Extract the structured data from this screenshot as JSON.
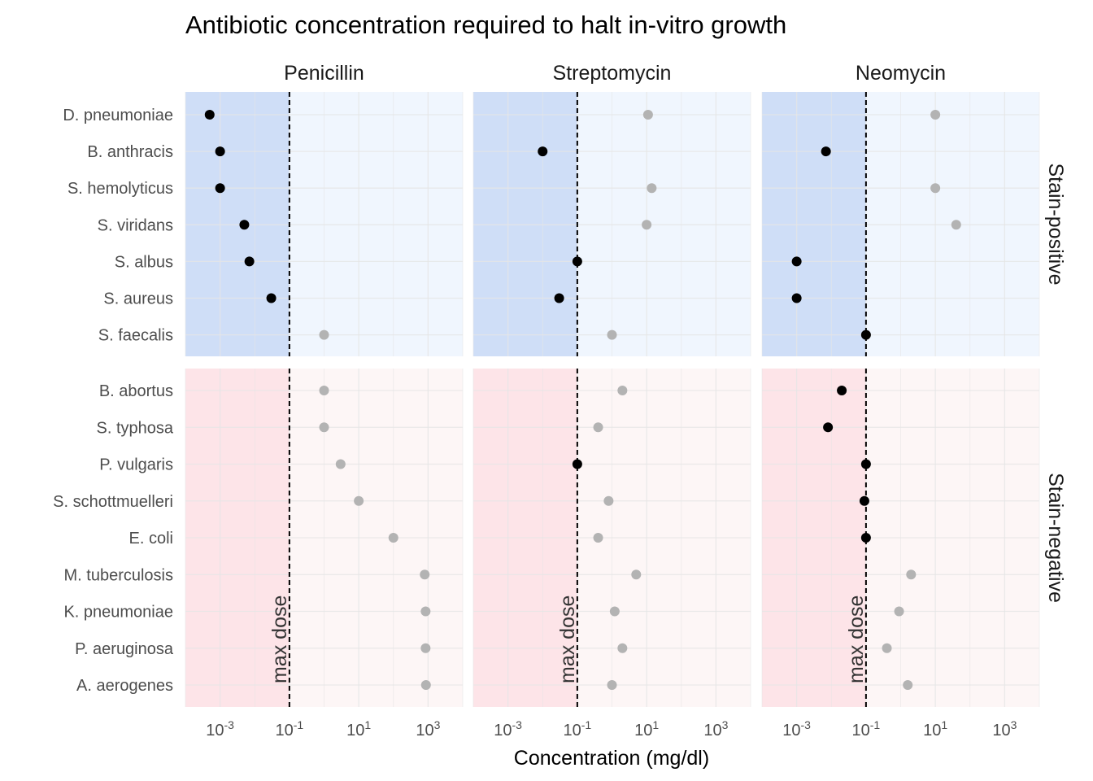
{
  "chart_data": {
    "type": "scatter",
    "title": "Antibiotic concentration required to halt in-vitro growth",
    "xlabel": "Concentration (mg/dl)",
    "x_scale": "log10",
    "xlim": [
      0.0001,
      10000
    ],
    "x_ticks": [
      {
        "value": 0.001,
        "base": "10",
        "exp": "-3"
      },
      {
        "value": 0.1,
        "base": "10",
        "exp": "-1"
      },
      {
        "value": 10,
        "base": "10",
        "exp": "1"
      },
      {
        "value": 1000,
        "base": "10",
        "exp": "3"
      }
    ],
    "grid": true,
    "max_dose": 0.1,
    "max_dose_label": "max dose",
    "columns": [
      "Penicillin",
      "Streptomycin",
      "Neomycin"
    ],
    "row_facets": [
      {
        "label": "Stain-positive",
        "shade_left": "#cfdef7",
        "shade_right": "#f0f6fe",
        "bacteria": [
          "D. pneumoniae",
          "B. anthracis",
          "S. hemolyticus",
          "S. viridans",
          "S. albus",
          "S. aureus",
          "S. faecalis"
        ],
        "values": {
          "Penicillin": [
            0.0005,
            0.001,
            0.001,
            0.005,
            0.007,
            0.03,
            1
          ],
          "Streptomycin": [
            11,
            0.01,
            14,
            10,
            0.1,
            0.03,
            1
          ],
          "Neomycin": [
            10,
            0.007,
            10,
            40,
            0.001,
            0.001,
            0.1
          ]
        }
      },
      {
        "label": "Stain-negative",
        "shade_left": "#fde4e8",
        "shade_right": "#fdf6f6",
        "bacteria": [
          "B. abortus",
          "S. typhosa",
          "P. vulgaris",
          "S. schottmuelleri",
          "E. coli",
          "M. tuberculosis",
          "K. pneumoniae",
          "P. aeruginosa",
          "A. aerogenes"
        ],
        "values": {
          "Penicillin": [
            1,
            1,
            3,
            10,
            100,
            800,
            850,
            850,
            870
          ],
          "Streptomycin": [
            2,
            0.4,
            0.1,
            0.8,
            0.4,
            5,
            1.2,
            2,
            1
          ],
          "Neomycin": [
            0.02,
            0.008,
            0.1,
            0.09,
            0.1,
            2,
            0.9,
            0.4,
            1.6
          ]
        }
      }
    ],
    "colors": {
      "effective_point": "#000000",
      "ineffective_point": "#b3b3b3",
      "grid": "#e6e6e6",
      "dashed_line": "#000000"
    }
  }
}
